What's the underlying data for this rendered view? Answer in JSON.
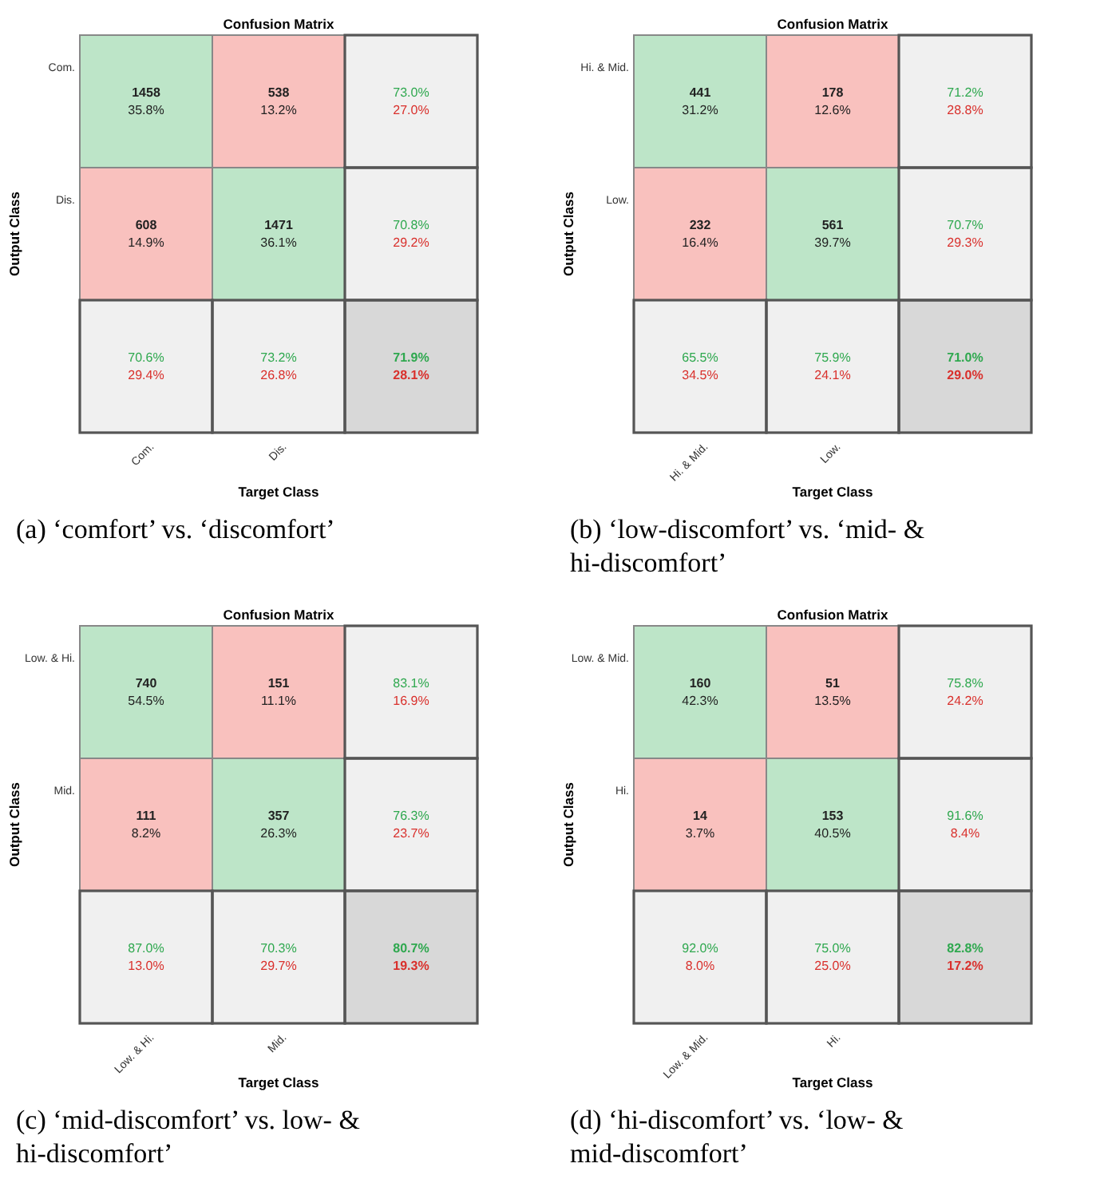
{
  "chart_data": [
    {
      "type": "heatmap",
      "title": "Confusion Matrix",
      "xlabel": "Target Class",
      "ylabel": "Output Class",
      "categories": [
        "Com.",
        "Dis.",
        null
      ],
      "y_categories": [
        "Com.",
        null,
        "Dis.",
        null,
        null,
        null
      ],
      "cells": [
        [
          1458,
          538,
          73.0
        ],
        [
          35.8,
          13.2,
          27.0
        ],
        [
          608,
          1471,
          70.8
        ],
        [
          14.9,
          36.1,
          29.2
        ],
        [
          70.6,
          73.2,
          71.9
        ],
        [
          29.4,
          26.8,
          28.1
        ]
      ],
      "cell_labels": [
        [
          "1458",
          "538",
          "73.0%"
        ],
        [
          "35.8%",
          "13.2%",
          "27.0%"
        ],
        [
          "608",
          "1471",
          "70.8%"
        ],
        [
          "14.9%",
          "36.1%",
          "29.2%"
        ],
        [
          "70.6%",
          "73.2%",
          "71.9%"
        ],
        [
          "29.4%",
          "26.8%",
          "28.1%"
        ]
      ],
      "colors": [
        [
          "#bde5c8",
          "#f9c1be",
          "#f0f0f0"
        ],
        [
          "#bde5c8",
          "#f9c1be",
          "#f0f0f0"
        ],
        [
          "#f9c1be",
          "#bde5c8",
          "#f0f0f0"
        ],
        [
          "#f9c1be",
          "#bde5c8",
          "#f0f0f0"
        ],
        [
          "#f0f0f0",
          "#f0f0f0",
          "#d8d8d8"
        ],
        [
          "#f0f0f0",
          "#f0f0f0",
          "#d8d8d8"
        ]
      ],
      "annotations": [
        "(a) ‘comfort’ vs. ‘discomfort’"
      ]
    },
    {
      "type": "heatmap",
      "title": "Confusion Matrix",
      "xlabel": "Target Class",
      "ylabel": "Output Class",
      "categories": [
        "Hi. & Mid.",
        "Low.",
        null
      ],
      "y_categories": [
        "Hi. & Mid.",
        null,
        "Low.",
        null,
        null,
        null
      ],
      "cells": [
        [
          441,
          178,
          71.2
        ],
        [
          31.2,
          12.6,
          28.8
        ],
        [
          232,
          561,
          70.7
        ],
        [
          16.4,
          39.7,
          29.3
        ],
        [
          65.5,
          75.9,
          71.0
        ],
        [
          34.5,
          24.1,
          29.0
        ]
      ],
      "cell_labels": [
        [
          "441",
          "178",
          "71.2%"
        ],
        [
          "31.2%",
          "12.6%",
          "28.8%"
        ],
        [
          "232",
          "561",
          "70.7%"
        ],
        [
          "16.4%",
          "39.7%",
          "29.3%"
        ],
        [
          "65.5%",
          "75.9%",
          "71.0%"
        ],
        [
          "34.5%",
          "24.1%",
          "29.0%"
        ]
      ],
      "colors": [
        [
          "#bde5c8",
          "#f9c1be",
          "#f0f0f0"
        ],
        [
          "#bde5c8",
          "#f9c1be",
          "#f0f0f0"
        ],
        [
          "#f9c1be",
          "#bde5c8",
          "#f0f0f0"
        ],
        [
          "#f9c1be",
          "#bde5c8",
          "#f0f0f0"
        ],
        [
          "#f0f0f0",
          "#f0f0f0",
          "#d8d8d8"
        ],
        [
          "#f0f0f0",
          "#f0f0f0",
          "#d8d8d8"
        ]
      ],
      "annotations": [
        "(b) ‘low-discomfort’ vs. ‘mid- & hi-discomfort’"
      ]
    },
    {
      "type": "heatmap",
      "title": "Confusion Matrix",
      "xlabel": "Target Class",
      "ylabel": "Output Class",
      "categories": [
        "Low. & Hi.",
        "Mid.",
        null
      ],
      "y_categories": [
        "Low. & Hi.",
        null,
        "Mid.",
        null,
        null,
        null
      ],
      "cells": [
        [
          740,
          151,
          83.1
        ],
        [
          54.5,
          11.1,
          16.9
        ],
        [
          111,
          357,
          76.3
        ],
        [
          8.2,
          26.3,
          23.7
        ],
        [
          87.0,
          70.3,
          80.7
        ],
        [
          13.0,
          29.7,
          19.3
        ]
      ],
      "cell_labels": [
        [
          "740",
          "151",
          "83.1%"
        ],
        [
          "54.5%",
          "11.1%",
          "16.9%"
        ],
        [
          "111",
          "357",
          "76.3%"
        ],
        [
          "8.2%",
          "26.3%",
          "23.7%"
        ],
        [
          "87.0%",
          "70.3%",
          "80.7%"
        ],
        [
          "13.0%",
          "29.7%",
          "19.3%"
        ]
      ],
      "colors": [
        [
          "#bde5c8",
          "#f9c1be",
          "#f0f0f0"
        ],
        [
          "#bde5c8",
          "#f9c1be",
          "#f0f0f0"
        ],
        [
          "#f9c1be",
          "#bde5c8",
          "#f0f0f0"
        ],
        [
          "#f9c1be",
          "#bde5c8",
          "#f0f0f0"
        ],
        [
          "#f0f0f0",
          "#f0f0f0",
          "#d8d8d8"
        ],
        [
          "#f0f0f0",
          "#f0f0f0",
          "#d8d8d8"
        ]
      ],
      "annotations": [
        "(c) ‘mid-discomfort’ vs. low- & hi-discomfort’"
      ]
    },
    {
      "type": "heatmap",
      "title": "Confusion Matrix",
      "xlabel": "Target Class",
      "ylabel": "Output Class",
      "categories": [
        "Low. & Mid.",
        "Hi.",
        null
      ],
      "y_categories": [
        "Low. & Mid.",
        null,
        "Hi.",
        null,
        null,
        null
      ],
      "cells": [
        [
          160,
          51,
          75.8
        ],
        [
          42.3,
          13.5,
          24.2
        ],
        [
          14,
          153,
          91.6
        ],
        [
          3.7,
          40.5,
          8.4
        ],
        [
          92.0,
          75.0,
          82.8
        ],
        [
          8.0,
          25.0,
          17.2
        ]
      ],
      "cell_labels": [
        [
          "160",
          "51",
          "75.8%"
        ],
        [
          "42.3%",
          "13.5%",
          "24.2%"
        ],
        [
          "14",
          "153",
          "91.6%"
        ],
        [
          "3.7%",
          "40.5%",
          "8.4%"
        ],
        [
          "92.0%",
          "75.0%",
          "82.8%"
        ],
        [
          "8.0%",
          "25.0%",
          "17.2%"
        ]
      ],
      "colors": [
        [
          "#bde5c8",
          "#f9c1be",
          "#f0f0f0"
        ],
        [
          "#bde5c8",
          "#f9c1be",
          "#f0f0f0"
        ],
        [
          "#f9c1be",
          "#bde5c8",
          "#f0f0f0"
        ],
        [
          "#f9c1be",
          "#bde5c8",
          "#f0f0f0"
        ],
        [
          "#f0f0f0",
          "#f0f0f0",
          "#d8d8d8"
        ],
        [
          "#f0f0f0",
          "#f0f0f0",
          "#d8d8d8"
        ]
      ],
      "annotations": [
        "(d) ‘hi-discomfort’ vs. ‘low- & mid-discomfort’"
      ]
    }
  ]
}
